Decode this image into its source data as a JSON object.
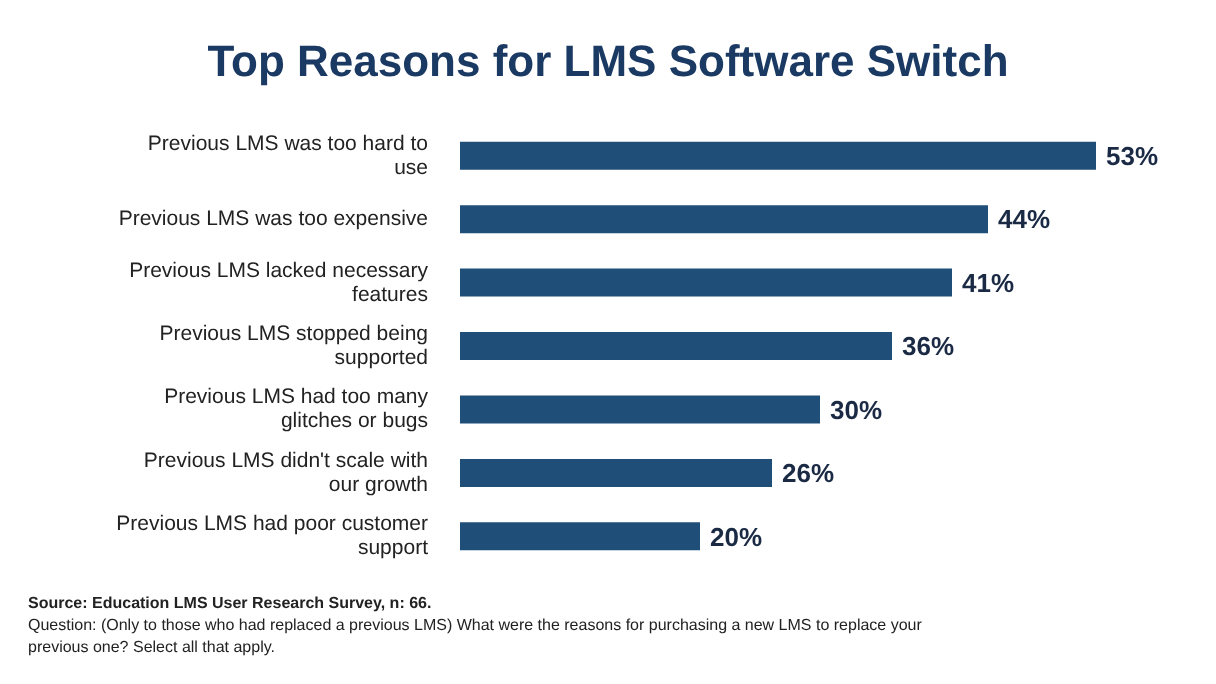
{
  "chart_data": {
    "type": "bar",
    "orientation": "horizontal",
    "title": "Top Reasons for LMS Software Switch",
    "categories": [
      "Previous LMS was too hard to use",
      "Previous LMS was too expensive",
      "Previous LMS lacked necessary features",
      "Previous LMS stopped being supported",
      "Previous LMS had too many glitches or bugs",
      "Previous LMS didn't scale with our growth",
      "Previous LMS had poor customer support"
    ],
    "values": [
      53,
      44,
      41,
      36,
      30,
      26,
      20
    ],
    "value_labels": [
      "53%",
      "44%",
      "41%",
      "36%",
      "30%",
      "26%",
      "20%"
    ],
    "color": "#1f4e79",
    "annotations": [
      "Source: Education LMS User Research Survey, n: 66.",
      "Question: (Only to those who had replaced a previous LMS) What were the reasons for purchasing a new LMS to replace your previous one? Select all that apply."
    ]
  }
}
